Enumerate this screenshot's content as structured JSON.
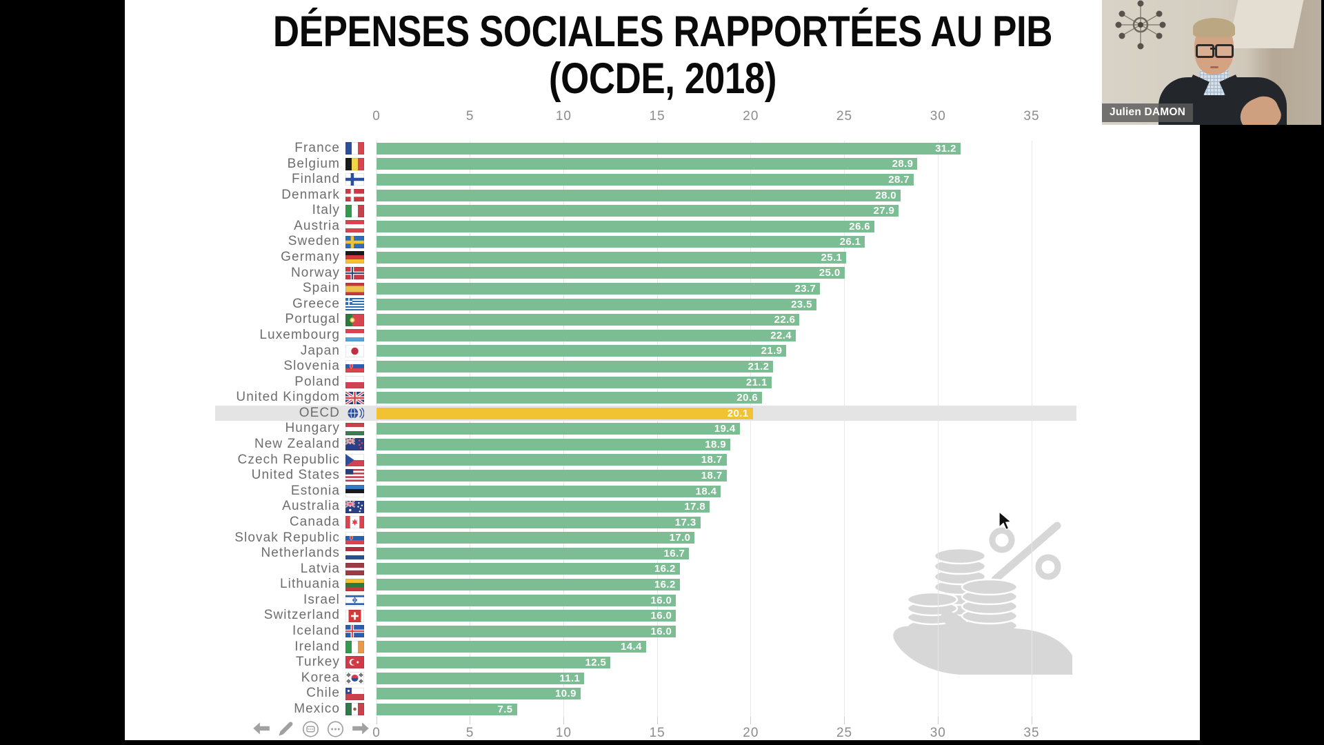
{
  "window": {
    "background": "#000000",
    "layout": "screen-share with webcam overlay"
  },
  "webcam": {
    "name_label": "Julien DAMON"
  },
  "slide_title": {
    "line1": "DÉPENSES SOCIALES RAPPORTÉES AU PIB",
    "line2": "(OCDE, 2018)"
  },
  "presenter_controls": {
    "buttons": [
      {
        "name": "previous-slide",
        "icon": "arrow-left-icon"
      },
      {
        "name": "pen-tool",
        "icon": "pencil-icon"
      },
      {
        "name": "slide-overview",
        "icon": "slides-icon"
      },
      {
        "name": "more-options",
        "icon": "ellipsis-icon"
      },
      {
        "name": "next-slide",
        "icon": "arrow-right-icon"
      }
    ]
  },
  "decorations": {
    "watermark": "hand-holding-coins-with-percent-sign"
  },
  "chart_data": {
    "type": "bar",
    "orientation": "horizontal",
    "title": "DÉPENSES SOCIALES RAPPORTÉES AU PIB (OCDE, 2018)",
    "xlabel": "",
    "ylabel": "",
    "value_unit": "% du PIB",
    "axis_ticks": [
      0,
      5,
      10,
      15,
      20,
      25,
      30,
      35
    ],
    "xlim": [
      0,
      37.5
    ],
    "grid": true,
    "legend": false,
    "bar_color": "#7cbd93",
    "highlight": {
      "label": "OECD",
      "bar_color": "#f1c232",
      "band_color": "#e4e4e4"
    },
    "categories": [
      "France",
      "Belgium",
      "Finland",
      "Denmark",
      "Italy",
      "Austria",
      "Sweden",
      "Germany",
      "Norway",
      "Spain",
      "Greece",
      "Portugal",
      "Luxembourg",
      "Japan",
      "Slovenia",
      "Poland",
      "United Kingdom",
      "OECD",
      "Hungary",
      "New Zealand",
      "Czech Republic",
      "United States",
      "Estonia",
      "Australia",
      "Canada",
      "Slovak Republic",
      "Netherlands",
      "Latvia",
      "Lithuania",
      "Israel",
      "Switzerland",
      "Iceland",
      "Ireland",
      "Turkey",
      "Korea",
      "Chile",
      "Mexico"
    ],
    "values": [
      31.2,
      28.9,
      28.7,
      28.0,
      27.9,
      26.6,
      26.1,
      25.1,
      25.0,
      23.7,
      23.5,
      22.6,
      22.4,
      21.9,
      21.2,
      21.1,
      20.6,
      20.1,
      19.4,
      18.9,
      18.7,
      18.7,
      18.4,
      17.8,
      17.3,
      17.0,
      16.7,
      16.2,
      16.2,
      16.0,
      16.0,
      16.0,
      14.4,
      12.5,
      11.1,
      10.9,
      7.5
    ],
    "rows": [
      {
        "label": "France",
        "value": 31.2,
        "flag": {
          "t": "v",
          "c": [
            "#2b4f9e",
            "#ffffff",
            "#d8454f"
          ]
        }
      },
      {
        "label": "Belgium",
        "value": 28.9,
        "flag": {
          "t": "v",
          "c": [
            "#1a1a1a",
            "#f3d348",
            "#d8454f"
          ]
        }
      },
      {
        "label": "Finland",
        "value": 28.7,
        "flag": {
          "t": "nc",
          "bg": "#ffffff",
          "cross": "#2b4f9e"
        }
      },
      {
        "label": "Denmark",
        "value": 28.0,
        "flag": {
          "t": "nc",
          "bg": "#c93a43",
          "cross": "#ffffff"
        }
      },
      {
        "label": "Italy",
        "value": 27.9,
        "flag": {
          "t": "v",
          "c": [
            "#33994f",
            "#ffffff",
            "#c8414b"
          ]
        }
      },
      {
        "label": "Austria",
        "value": 26.6,
        "flag": {
          "t": "h",
          "c": [
            "#d8454f",
            "#ffffff",
            "#d8454f"
          ]
        }
      },
      {
        "label": "Sweden",
        "value": 26.1,
        "flag": {
          "t": "nc",
          "bg": "#2f6db5",
          "cross": "#f2c230"
        }
      },
      {
        "label": "Germany",
        "value": 25.1,
        "flag": {
          "t": "h",
          "c": [
            "#1a1a1a",
            "#d03a3a",
            "#f2c230"
          ]
        }
      },
      {
        "label": "Norway",
        "value": 25.0,
        "flag": {
          "t": "nc2",
          "bg": "#c93a43",
          "cross": "#ffffff",
          "inner": "#24457e"
        }
      },
      {
        "label": "Spain",
        "value": 23.7,
        "flag": {
          "t": "h",
          "c": [
            "#c03a3f",
            "#e9c34b",
            "#c03a3f"
          ],
          "w": [
            1,
            2,
            1
          ]
        }
      },
      {
        "label": "Greece",
        "value": 23.5,
        "flag": {
          "t": "gr",
          "blue": "#2f6db5"
        }
      },
      {
        "label": "Portugal",
        "value": 22.6,
        "flag": {
          "t": "pt",
          "c": [
            "#2e7a3c",
            "#d8454f"
          ],
          "emblem": "#e9c34b"
        }
      },
      {
        "label": "Luxembourg",
        "value": 22.4,
        "flag": {
          "t": "h",
          "c": [
            "#d8454f",
            "#ffffff",
            "#5aa3d8"
          ]
        }
      },
      {
        "label": "Japan",
        "value": 21.9,
        "flag": {
          "t": "disc",
          "bg": "#ffffff",
          "disc": "#c03243"
        }
      },
      {
        "label": "Slovenia",
        "value": 21.2,
        "flag": {
          "t": "h",
          "c": [
            "#ffffff",
            "#2b5fae",
            "#d8454f"
          ],
          "shield": "#d8454f"
        }
      },
      {
        "label": "Poland",
        "value": 21.1,
        "flag": {
          "t": "h",
          "c": [
            "#ffffff",
            "#d04353"
          ]
        }
      },
      {
        "label": "United Kingdom",
        "value": 20.6,
        "flag": {
          "t": "uk"
        }
      },
      {
        "label": "OECD",
        "value": 20.1,
        "highlight": true,
        "flag": {
          "t": "oecd",
          "color": "#2a4f9e"
        }
      },
      {
        "label": "Hungary",
        "value": 19.4,
        "flag": {
          "t": "h",
          "c": [
            "#c8414b",
            "#ffffff",
            "#3e7a52"
          ]
        }
      },
      {
        "label": "New Zealand",
        "value": 18.9,
        "flag": {
          "t": "nz"
        }
      },
      {
        "label": "Czech Republic",
        "value": 18.7,
        "flag": {
          "t": "cz"
        }
      },
      {
        "label": "United States",
        "value": 18.7,
        "flag": {
          "t": "us"
        }
      },
      {
        "label": "Estonia",
        "value": 18.4,
        "flag": {
          "t": "h",
          "c": [
            "#3779c4",
            "#1a1a1a",
            "#ffffff"
          ]
        }
      },
      {
        "label": "Australia",
        "value": 17.8,
        "flag": {
          "t": "au"
        }
      },
      {
        "label": "Canada",
        "value": 17.3,
        "flag": {
          "t": "ca"
        }
      },
      {
        "label": "Slovak Republic",
        "value": 17.0,
        "flag": {
          "t": "h",
          "c": [
            "#ffffff",
            "#2b5fae",
            "#d8454f"
          ],
          "shield": "#d8454f"
        }
      },
      {
        "label": "Netherlands",
        "value": 16.7,
        "flag": {
          "t": "h",
          "c": [
            "#b03040",
            "#ffffff",
            "#2b4f8e"
          ]
        }
      },
      {
        "label": "Latvia",
        "value": 16.2,
        "flag": {
          "t": "h",
          "c": [
            "#9e3a43",
            "#ffffff",
            "#9e3a43"
          ],
          "w": [
            2,
            1,
            2
          ]
        }
      },
      {
        "label": "Lithuania",
        "value": 16.2,
        "flag": {
          "t": "h",
          "c": [
            "#f2c230",
            "#2e7a3c",
            "#c03a3f"
          ]
        }
      },
      {
        "label": "Israel",
        "value": 16.0,
        "flag": {
          "t": "il"
        }
      },
      {
        "label": "Switzerland",
        "value": 16.0,
        "flag": {
          "t": "ch"
        }
      },
      {
        "label": "Iceland",
        "value": 16.0,
        "flag": {
          "t": "nc2",
          "bg": "#2b5fae",
          "cross": "#ffffff",
          "inner": "#d8454f"
        }
      },
      {
        "label": "Ireland",
        "value": 14.4,
        "flag": {
          "t": "v",
          "c": [
            "#33994f",
            "#ffffff",
            "#e89a4a"
          ]
        }
      },
      {
        "label": "Turkey",
        "value": 12.5,
        "flag": {
          "t": "tr"
        }
      },
      {
        "label": "Korea",
        "value": 11.1,
        "flag": {
          "t": "kr"
        }
      },
      {
        "label": "Chile",
        "value": 10.9,
        "flag": {
          "t": "cl"
        }
      },
      {
        "label": "Mexico",
        "value": 7.5,
        "flag": {
          "t": "mx"
        }
      }
    ]
  }
}
